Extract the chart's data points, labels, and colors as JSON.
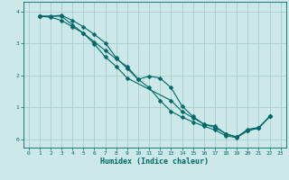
{
  "xlabel": "Humidex (Indice chaleur)",
  "xlim": [
    -0.5,
    23.5
  ],
  "ylim": [
    -0.25,
    4.3
  ],
  "xticks": [
    0,
    1,
    2,
    3,
    4,
    5,
    6,
    7,
    8,
    9,
    10,
    11,
    12,
    13,
    14,
    15,
    16,
    17,
    18,
    19,
    20,
    21,
    22,
    23
  ],
  "yticks": [
    0,
    1,
    2,
    3,
    4
  ],
  "bg_color": "#cce8e8",
  "grid_color": "#aacccc",
  "line_color": "#006868",
  "line1_x": [
    1,
    2,
    3,
    4,
    5,
    6,
    7,
    8,
    9,
    10,
    11,
    12,
    13,
    14,
    15,
    16,
    17,
    18,
    19,
    20,
    21,
    22
  ],
  "line1_y": [
    3.85,
    3.82,
    3.72,
    3.52,
    3.32,
    3.05,
    2.78,
    2.52,
    2.28,
    1.88,
    1.62,
    1.22,
    0.88,
    0.7,
    0.55,
    0.42,
    0.3,
    0.12,
    0.06,
    0.28,
    0.36,
    0.72
  ],
  "line2_x": [
    1,
    2,
    3,
    4,
    5,
    6,
    7,
    8,
    9,
    10,
    11,
    12,
    13,
    14,
    15,
    16,
    17,
    18,
    19,
    20,
    21,
    22
  ],
  "line2_y": [
    3.85,
    3.85,
    3.88,
    3.72,
    3.52,
    3.28,
    3.02,
    2.55,
    2.22,
    1.88,
    1.98,
    1.92,
    1.62,
    1.05,
    0.72,
    0.48,
    0.42,
    0.18,
    0.08,
    0.32,
    0.38,
    0.72
  ],
  "line3_x": [
    1,
    3,
    4,
    5,
    6,
    7,
    8,
    9,
    13,
    14,
    15,
    16,
    17,
    18,
    19,
    20,
    21,
    22
  ],
  "line3_y": [
    3.85,
    3.85,
    3.58,
    3.32,
    2.98,
    2.58,
    2.28,
    1.92,
    1.22,
    0.88,
    0.68,
    0.48,
    0.38,
    0.18,
    0.08,
    0.28,
    0.36,
    0.72
  ]
}
